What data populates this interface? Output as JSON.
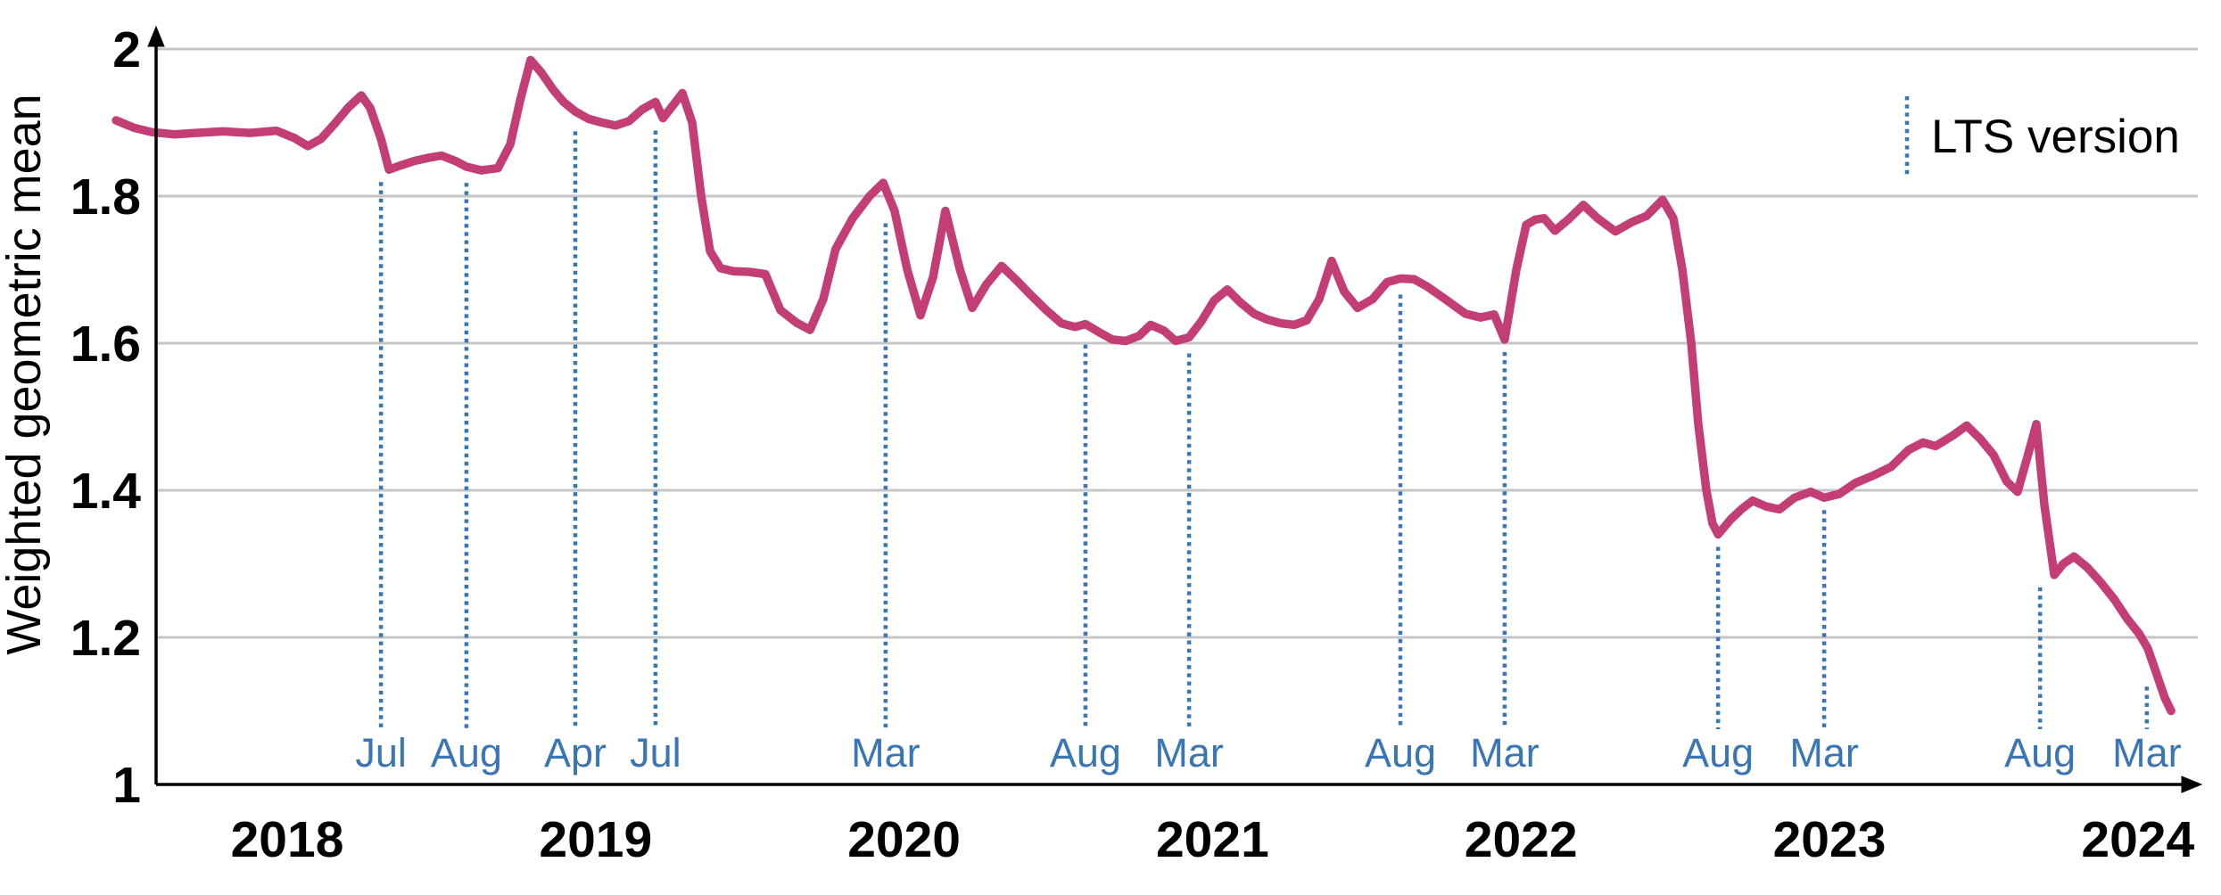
{
  "chart_data": {
    "type": "line",
    "title": "",
    "xlabel": "",
    "ylabel": "Weighted geometric mean",
    "xlim": [
      2017.4,
      2024.27
    ],
    "ylim": [
      1,
      2
    ],
    "grid": "horizontal",
    "x_ticks": [
      2018,
      2019,
      2020,
      2021,
      2022,
      2023,
      2024
    ],
    "y_ticks": [
      {
        "label": "1",
        "value": 1.0
      },
      {
        "label": "1.2",
        "value": 1.2
      },
      {
        "label": "1.4",
        "value": 1.4
      },
      {
        "label": "1.6",
        "value": 1.6
      },
      {
        "label": "1.8",
        "value": 1.8
      },
      {
        "label": "2",
        "value": 2.0
      }
    ],
    "legend": {
      "label": "LTS version",
      "position": "top-right",
      "marker": "dotted-vertical-line"
    },
    "colors": {
      "series": "#c23e74",
      "lts_marker": "#3a76b4",
      "grid": "#c6c6c6",
      "axis": "#000000",
      "tick_text": "#000000",
      "month_text": "#3a76b4"
    },
    "lts_markers": [
      {
        "label": "Jul",
        "x": 2018.304
      },
      {
        "label": "Aug",
        "x": 2018.581
      },
      {
        "label": "Apr",
        "x": 2018.934
      },
      {
        "label": "Jul",
        "x": 2019.194
      },
      {
        "label": "Mar",
        "x": 2019.94
      },
      {
        "label": "Aug",
        "x": 2020.588
      },
      {
        "label": "Mar",
        "x": 2020.924
      },
      {
        "label": "Aug",
        "x": 2021.609
      },
      {
        "label": "Mar",
        "x": 2021.947
      },
      {
        "label": "Aug",
        "x": 2022.639
      },
      {
        "label": "Mar",
        "x": 2022.983
      },
      {
        "label": "Aug",
        "x": 2023.683
      },
      {
        "label": "Mar",
        "x": 2024.029
      }
    ],
    "series": [
      {
        "name": "Weighted geometric mean",
        "color": "#c23e74",
        "points": [
          [
            2017.445,
            1.903
          ],
          [
            2017.503,
            1.893
          ],
          [
            2017.56,
            1.887
          ],
          [
            2017.633,
            1.884
          ],
          [
            2017.705,
            1.886
          ],
          [
            2017.792,
            1.888
          ],
          [
            2017.879,
            1.886
          ],
          [
            2017.965,
            1.889
          ],
          [
            2018.023,
            1.879
          ],
          [
            2018.067,
            1.868
          ],
          [
            2018.11,
            1.878
          ],
          [
            2018.153,
            1.898
          ],
          [
            2018.197,
            1.92
          ],
          [
            2018.24,
            1.937
          ],
          [
            2018.269,
            1.92
          ],
          [
            2018.304,
            1.878
          ],
          [
            2018.33,
            1.836
          ],
          [
            2018.37,
            1.842
          ],
          [
            2018.414,
            1.848
          ],
          [
            2018.457,
            1.852
          ],
          [
            2018.5,
            1.855
          ],
          [
            2018.544,
            1.848
          ],
          [
            2018.581,
            1.84
          ],
          [
            2018.63,
            1.835
          ],
          [
            2018.683,
            1.838
          ],
          [
            2018.723,
            1.87
          ],
          [
            2018.755,
            1.93
          ],
          [
            2018.789,
            1.985
          ],
          [
            2018.824,
            1.968
          ],
          [
            2018.862,
            1.945
          ],
          [
            2018.896,
            1.928
          ],
          [
            2018.934,
            1.915
          ],
          [
            2018.977,
            1.905
          ],
          [
            2019.021,
            1.9
          ],
          [
            2019.064,
            1.896
          ],
          [
            2019.108,
            1.902
          ],
          [
            2019.151,
            1.918
          ],
          [
            2019.194,
            1.928
          ],
          [
            2019.218,
            1.906
          ],
          [
            2019.252,
            1.924
          ],
          [
            2019.281,
            1.94
          ],
          [
            2019.313,
            1.9
          ],
          [
            2019.342,
            1.8
          ],
          [
            2019.371,
            1.725
          ],
          [
            2019.405,
            1.702
          ],
          [
            2019.446,
            1.698
          ],
          [
            2019.498,
            1.697
          ],
          [
            2019.55,
            1.694
          ],
          [
            2019.599,
            1.645
          ],
          [
            2019.651,
            1.628
          ],
          [
            2019.695,
            1.618
          ],
          [
            2019.738,
            1.66
          ],
          [
            2019.778,
            1.728
          ],
          [
            2019.833,
            1.77
          ],
          [
            2019.888,
            1.8
          ],
          [
            2019.932,
            1.818
          ],
          [
            2019.969,
            1.78
          ],
          [
            2020.01,
            1.7
          ],
          [
            2020.053,
            1.638
          ],
          [
            2020.094,
            1.69
          ],
          [
            2020.134,
            1.78
          ],
          [
            2020.181,
            1.7
          ],
          [
            2020.221,
            1.648
          ],
          [
            2020.267,
            1.68
          ],
          [
            2020.316,
            1.705
          ],
          [
            2020.366,
            1.685
          ],
          [
            2020.412,
            1.665
          ],
          [
            2020.461,
            1.645
          ],
          [
            2020.51,
            1.627
          ],
          [
            2020.554,
            1.622
          ],
          [
            2020.588,
            1.626
          ],
          [
            2020.632,
            1.615
          ],
          [
            2020.675,
            1.605
          ],
          [
            2020.718,
            1.603
          ],
          [
            2020.762,
            1.61
          ],
          [
            2020.799,
            1.625
          ],
          [
            2020.843,
            1.617
          ],
          [
            2020.88,
            1.603
          ],
          [
            2020.924,
            1.608
          ],
          [
            2020.964,
            1.63
          ],
          [
            2021.005,
            1.658
          ],
          [
            2021.048,
            1.673
          ],
          [
            2021.091,
            1.655
          ],
          [
            2021.135,
            1.64
          ],
          [
            2021.178,
            1.632
          ],
          [
            2021.222,
            1.627
          ],
          [
            2021.265,
            1.625
          ],
          [
            2021.305,
            1.631
          ],
          [
            2021.346,
            1.66
          ],
          [
            2021.386,
            1.712
          ],
          [
            2021.427,
            1.67
          ],
          [
            2021.47,
            1.648
          ],
          [
            2021.519,
            1.66
          ],
          [
            2021.566,
            1.683
          ],
          [
            2021.609,
            1.688
          ],
          [
            2021.653,
            1.687
          ],
          [
            2021.696,
            1.677
          ],
          [
            2021.754,
            1.66
          ],
          [
            2021.82,
            1.64
          ],
          [
            2021.869,
            1.635
          ],
          [
            2021.913,
            1.639
          ],
          [
            2021.947,
            1.605
          ],
          [
            2021.985,
            1.7
          ],
          [
            2022.017,
            1.761
          ],
          [
            2022.046,
            1.768
          ],
          [
            2022.075,
            1.77
          ],
          [
            2022.11,
            1.753
          ],
          [
            2022.153,
            1.768
          ],
          [
            2022.202,
            1.788
          ],
          [
            2022.248,
            1.77
          ],
          [
            2022.306,
            1.752
          ],
          [
            2022.361,
            1.765
          ],
          [
            2022.407,
            1.773
          ],
          [
            2022.459,
            1.795
          ],
          [
            2022.494,
            1.77
          ],
          [
            2022.523,
            1.7
          ],
          [
            2022.552,
            1.6
          ],
          [
            2022.575,
            1.49
          ],
          [
            2022.601,
            1.4
          ],
          [
            2022.621,
            1.355
          ],
          [
            2022.639,
            1.34
          ],
          [
            2022.679,
            1.36
          ],
          [
            2022.717,
            1.375
          ],
          [
            2022.751,
            1.386
          ],
          [
            2022.795,
            1.378
          ],
          [
            2022.838,
            1.374
          ],
          [
            2022.887,
            1.39
          ],
          [
            2022.939,
            1.398
          ],
          [
            2022.983,
            1.39
          ],
          [
            2023.032,
            1.395
          ],
          [
            2023.084,
            1.41
          ],
          [
            2023.142,
            1.42
          ],
          [
            2023.2,
            1.432
          ],
          [
            2023.257,
            1.455
          ],
          [
            2023.304,
            1.465
          ],
          [
            2023.344,
            1.46
          ],
          [
            2023.402,
            1.475
          ],
          [
            2023.445,
            1.488
          ],
          [
            2023.489,
            1.47
          ],
          [
            2023.532,
            1.448
          ],
          [
            2023.575,
            1.412
          ],
          [
            2023.61,
            1.398
          ],
          [
            2023.645,
            1.45
          ],
          [
            2023.671,
            1.49
          ],
          [
            2023.697,
            1.38
          ],
          [
            2023.729,
            1.285
          ],
          [
            2023.758,
            1.3
          ],
          [
            2023.793,
            1.31
          ],
          [
            2023.836,
            1.295
          ],
          [
            2023.879,
            1.275
          ],
          [
            2023.923,
            1.252
          ],
          [
            2023.966,
            1.225
          ],
          [
            2024.004,
            1.205
          ],
          [
            2024.032,
            1.185
          ],
          [
            2024.061,
            1.15
          ],
          [
            2024.087,
            1.118
          ],
          [
            2024.108,
            1.1
          ]
        ]
      }
    ]
  }
}
